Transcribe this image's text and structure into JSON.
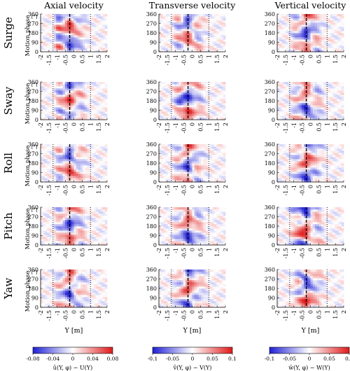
{
  "column_titles": [
    "Axial velocity",
    "Transverse velocity",
    "Vertical velocity"
  ],
  "row_labels": [
    "Surge",
    "Sway",
    "Roll",
    "Pitch",
    "Yaw"
  ],
  "ylabel": "Motion phase",
  "yunit": "[°]",
  "xlabel": "Y [m]",
  "chart_data": {
    "type": "heatmap",
    "layout": "small-multiples grid (5 rows × 3 columns)",
    "x_ticks": [
      "-2",
      "-1.5",
      "-1",
      "-0.5",
      "0",
      "0.5",
      "1",
      "1.5",
      "2"
    ],
    "xlim": [
      -2,
      2
    ],
    "y_ticks": [
      "0",
      "90",
      "180",
      "270",
      "360"
    ],
    "ylim": [
      0,
      360
    ],
    "reference_lines": {
      "dashed_x": [
        -0.25
      ],
      "dotted_x": [
        -1.25,
        1.0
      ]
    },
    "colormap": {
      "negative": "#1f1fd6",
      "zero": "#ffffff",
      "positive": "#e01919"
    },
    "colorbars": [
      {
        "label": "ū(Y, φ) − U(Y)",
        "ticks": [
          "-0.08",
          "-0.04",
          "0",
          "0.04",
          "0.08"
        ],
        "range": [
          -0.08,
          0.08
        ]
      },
      {
        "label": "v̄(Y, φ) − V(Y)",
        "ticks": [
          "-0.1",
          "-0.05",
          "0",
          "0.05",
          "0.1"
        ],
        "range": [
          -0.1,
          0.1
        ]
      },
      {
        "label": "w̄(Y, φ) − W(Y)",
        "ticks": [
          "-0.1",
          "-0.05",
          "0",
          "0.05",
          "0.1"
        ],
        "range": [
          -0.1,
          0.1
        ]
      }
    ]
  }
}
